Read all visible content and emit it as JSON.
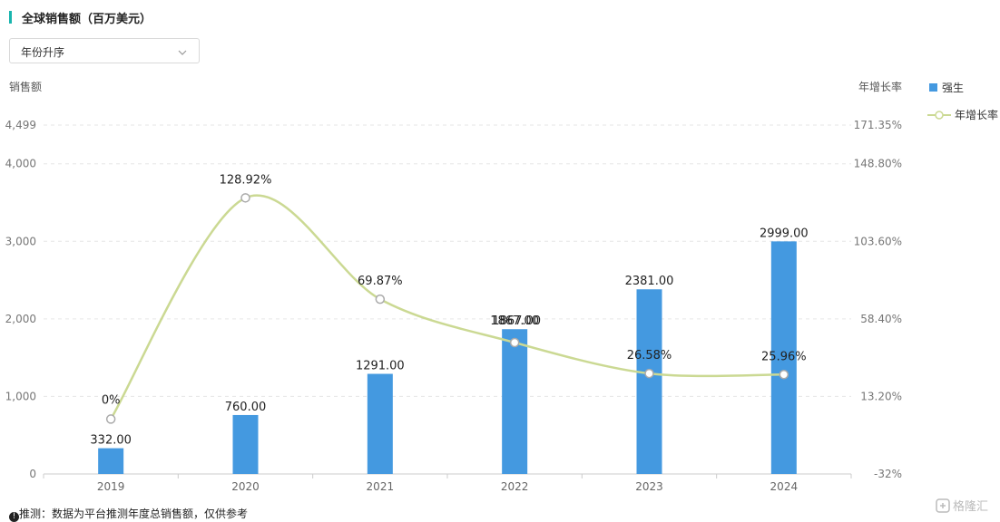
{
  "title": "全球销售额（百万美元）",
  "sort_select": {
    "value": "年份升序"
  },
  "footnote": "推测：数据为平台推测年度总销售额，仅供参考",
  "watermark": "格隆汇",
  "colors": {
    "bar": "#4499e0",
    "line": "#cbd993",
    "accent": "#19b5ae"
  },
  "icons": {
    "dropdown": "chevron-down-icon",
    "info": "info-icon"
  },
  "chart_data": {
    "type": "bar",
    "categories": [
      "2019",
      "2020",
      "2021",
      "2022",
      "2023",
      "2024"
    ],
    "series": [
      {
        "name": "强生",
        "type": "bar",
        "axis": "left",
        "values": [
          332.0,
          760.0,
          1291.0,
          1867.0,
          2381.0,
          2999.0
        ],
        "labels": [
          "332.00",
          "760.00",
          "1291.00",
          "1867.00",
          "2381.00",
          "2999.00"
        ]
      },
      {
        "name": "年增长率",
        "type": "line",
        "axis": "right",
        "values": [
          0,
          128.92,
          69.87,
          44.58,
          26.58,
          25.96
        ],
        "labels": [
          "0%",
          "128.92%",
          "69.87%",
          "",
          "26.58%",
          "25.96%"
        ]
      }
    ],
    "overlap_label": "1867.00",
    "ylabel_left": "销售额",
    "ylabel_right": "年增长率",
    "left_ticks": [
      "0",
      "1,000",
      "2,000",
      "3,000",
      "4,000",
      "4,499"
    ],
    "right_ticks": [
      "-32%",
      "13.20%",
      "58.40%",
      "103.60%",
      "148.80%",
      "171.35%"
    ],
    "ylim_left": [
      0,
      4499
    ],
    "ylim_right": [
      -32,
      171.35
    ],
    "legend_position": "right",
    "grid": true
  }
}
